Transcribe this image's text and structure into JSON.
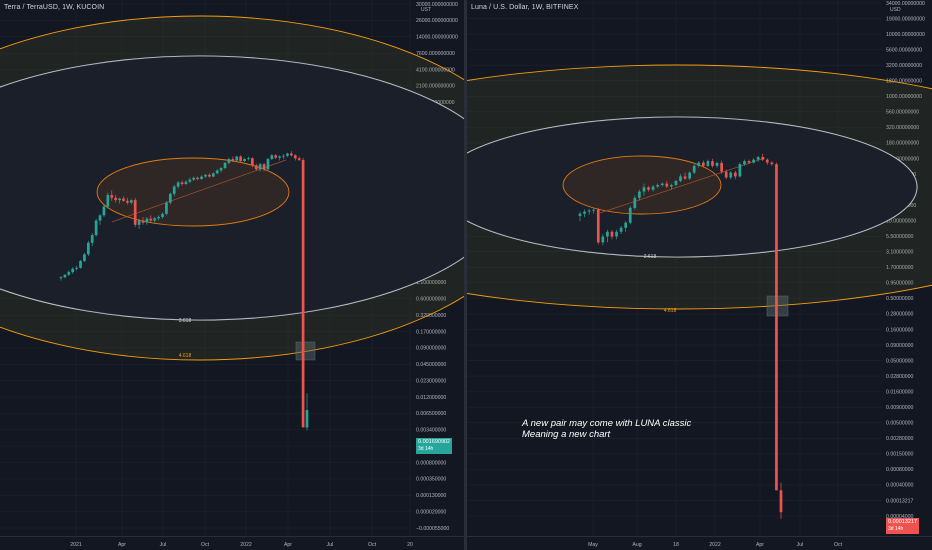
{
  "chart_data": [
    {
      "type": "candlestick",
      "title": "Terra / TerraUSD, 1W, KUCOIN",
      "unit": "UST",
      "scale": "log",
      "y_ticks": [
        "30000.000000000",
        "26000.000000000",
        "14000.000000000",
        "7600.000000000",
        "4100.000000000",
        "2100.000000000",
        "1100.000000000",
        "580.000000000",
        "320.000000000",
        "170.000000000",
        "90.000000000",
        "46.000000000",
        "24.000000000",
        "13.000000000",
        "7.000000000",
        "3.800000000",
        "2.000000000",
        "1.100000000",
        "0.600000000",
        "0.320000000",
        "0.170000000",
        "0.090000000",
        "0.045000000",
        "0.023000000",
        "0.012000000",
        "0.006500000",
        "0.003400000",
        "0.001690902",
        "0.000800000",
        "0.000350000",
        "0.000130000",
        "0.000020000",
        "−0.000055000"
      ],
      "x_ticks": [
        "2021",
        "Apr",
        "Jul",
        "Oct",
        "2022",
        "Apr",
        "Jul",
        "Oct",
        "20"
      ],
      "fib_labels": [
        "3.618",
        "4.618"
      ],
      "last_price": "0.001690902",
      "last_price_sub": "3d 14h",
      "candles": [
        {
          "o": 0.5,
          "h": 0.55,
          "l": 0.45,
          "c": 0.52
        },
        {
          "o": 0.52,
          "h": 0.6,
          "l": 0.5,
          "c": 0.58
        },
        {
          "o": 0.58,
          "h": 0.7,
          "l": 0.55,
          "c": 0.65
        },
        {
          "o": 0.65,
          "h": 0.8,
          "l": 0.6,
          "c": 0.75
        },
        {
          "o": 0.75,
          "h": 0.85,
          "l": 0.7,
          "c": 0.78
        },
        {
          "o": 0.78,
          "h": 1.1,
          "l": 0.75,
          "c": 1.05
        },
        {
          "o": 1.05,
          "h": 1.5,
          "l": 1.0,
          "c": 1.4
        },
        {
          "o": 1.4,
          "h": 2.5,
          "l": 1.3,
          "c": 2.3
        },
        {
          "o": 2.3,
          "h": 3.5,
          "l": 2.0,
          "c": 3.2
        },
        {
          "o": 3.2,
          "h": 6.5,
          "l": 3.0,
          "c": 6.0
        },
        {
          "o": 6.0,
          "h": 8.0,
          "l": 5.0,
          "c": 7.5
        },
        {
          "o": 7.5,
          "h": 12.0,
          "l": 7.0,
          "c": 11.0
        },
        {
          "o": 11.0,
          "h": 20.0,
          "l": 10.0,
          "c": 18.0
        },
        {
          "o": 18.0,
          "h": 22.0,
          "l": 14.0,
          "c": 16.0
        },
        {
          "o": 16.0,
          "h": 18.0,
          "l": 13.0,
          "c": 14.5
        },
        {
          "o": 14.5,
          "h": 16.0,
          "l": 12.5,
          "c": 15.5
        },
        {
          "o": 15.5,
          "h": 17.0,
          "l": 13.5,
          "c": 14.0
        },
        {
          "o": 14.0,
          "h": 16.0,
          "l": 12.0,
          "c": 13.0
        },
        {
          "o": 13.0,
          "h": 15.0,
          "l": 12.0,
          "c": 14.5
        },
        {
          "o": 14.5,
          "h": 16.0,
          "l": 4.5,
          "c": 5.0
        },
        {
          "o": 5.0,
          "h": 6.5,
          "l": 4.2,
          "c": 6.0
        },
        {
          "o": 6.0,
          "h": 7.0,
          "l": 5.0,
          "c": 5.5
        },
        {
          "o": 5.5,
          "h": 7.0,
          "l": 5.0,
          "c": 6.5
        },
        {
          "o": 6.5,
          "h": 7.5,
          "l": 5.5,
          "c": 6.0
        },
        {
          "o": 6.0,
          "h": 7.0,
          "l": 5.5,
          "c": 6.6
        },
        {
          "o": 6.6,
          "h": 7.5,
          "l": 6.0,
          "c": 7.0
        },
        {
          "o": 7.0,
          "h": 8.5,
          "l": 6.5,
          "c": 8.0
        },
        {
          "o": 8.0,
          "h": 14.0,
          "l": 7.5,
          "c": 13.0
        },
        {
          "o": 13.0,
          "h": 20.0,
          "l": 12.0,
          "c": 19.0
        },
        {
          "o": 19.0,
          "h": 28.0,
          "l": 17.0,
          "c": 26.0
        },
        {
          "o": 26.0,
          "h": 33.0,
          "l": 24.0,
          "c": 31.0
        },
        {
          "o": 31.0,
          "h": 34.0,
          "l": 27.0,
          "c": 29.0
        },
        {
          "o": 29.0,
          "h": 34.0,
          "l": 28.0,
          "c": 32.0
        },
        {
          "o": 32.0,
          "h": 38.0,
          "l": 30.0,
          "c": 35.0
        },
        {
          "o": 35.0,
          "h": 40.0,
          "l": 33.0,
          "c": 38.0
        },
        {
          "o": 38.0,
          "h": 40.0,
          "l": 34.0,
          "c": 36.0
        },
        {
          "o": 36.0,
          "h": 42.0,
          "l": 35.0,
          "c": 40.0
        },
        {
          "o": 40.0,
          "h": 45.0,
          "l": 38.0,
          "c": 43.0
        },
        {
          "o": 43.0,
          "h": 46.0,
          "l": 38.0,
          "c": 40.0
        },
        {
          "o": 40.0,
          "h": 48.0,
          "l": 39.0,
          "c": 46.0
        },
        {
          "o": 46.0,
          "h": 55.0,
          "l": 44.0,
          "c": 52.0
        },
        {
          "o": 52.0,
          "h": 60.0,
          "l": 48.0,
          "c": 58.0
        },
        {
          "o": 58.0,
          "h": 75.0,
          "l": 55.0,
          "c": 72.0
        },
        {
          "o": 72.0,
          "h": 90.0,
          "l": 68.0,
          "c": 85.0
        },
        {
          "o": 85.0,
          "h": 95.0,
          "l": 75.0,
          "c": 80.0
        },
        {
          "o": 80.0,
          "h": 98.0,
          "l": 78.0,
          "c": 95.0
        },
        {
          "o": 95.0,
          "h": 100.0,
          "l": 72.0,
          "c": 78.0
        },
        {
          "o": 78.0,
          "h": 90.0,
          "l": 75.0,
          "c": 85.0
        },
        {
          "o": 85.0,
          "h": 95.0,
          "l": 80.0,
          "c": 88.0
        },
        {
          "o": 88.0,
          "h": 92.0,
          "l": 60.0,
          "c": 65.0
        },
        {
          "o": 65.0,
          "h": 70.0,
          "l": 52.0,
          "c": 55.0
        },
        {
          "o": 55.0,
          "h": 72.0,
          "l": 50.0,
          "c": 68.0
        },
        {
          "o": 68.0,
          "h": 72.0,
          "l": 50.0,
          "c": 55.0
        },
        {
          "o": 55.0,
          "h": 90.0,
          "l": 53.0,
          "c": 85.0
        },
        {
          "o": 85.0,
          "h": 105.0,
          "l": 82.0,
          "c": 100.0
        },
        {
          "o": 100.0,
          "h": 105.0,
          "l": 85.0,
          "c": 90.0
        },
        {
          "o": 90.0,
          "h": 100.0,
          "l": 80.0,
          "c": 95.0
        },
        {
          "o": 95.0,
          "h": 105.0,
          "l": 85.0,
          "c": 98.0
        },
        {
          "o": 98.0,
          "h": 112.0,
          "l": 92.0,
          "c": 108.0
        },
        {
          "o": 108.0,
          "h": 119.0,
          "l": 95.0,
          "c": 100.0
        },
        {
          "o": 100.0,
          "h": 105.0,
          "l": 80.0,
          "c": 88.0
        },
        {
          "o": 88.0,
          "h": 95.0,
          "l": 78.0,
          "c": 82.0
        },
        {
          "o": 82.0,
          "h": 90.0,
          "l": 0.0008,
          "c": 0.0008
        },
        {
          "o": 0.0008,
          "h": 0.0035,
          "l": 0.0007,
          "c": 0.0017
        }
      ]
    },
    {
      "type": "candlestick",
      "title": "Luna / U.S. Dollar, 1W, BITFINEX",
      "unit": "USD",
      "scale": "log",
      "y_ticks": [
        "34000.00000000",
        "19000.00000000",
        "10000.00000000",
        "5600.00000000",
        "3200.00000000",
        "1800.00000000",
        "1000.00000000",
        "560.00000000",
        "320.00000000",
        "180.00000000",
        "100.00000000",
        "56.00000000",
        "32.00000000",
        "18.00000000",
        "10.00000000",
        "5.50000000",
        "3.10000000",
        "1.70000000",
        "0.95000000",
        "0.50000000",
        "0.28000000",
        "0.16000000",
        "0.09000000",
        "0.05000000",
        "0.02800000",
        "0.01600000",
        "0.00900000",
        "0.00500000",
        "0.00280000",
        "0.00150000",
        "0.00080000",
        "0.00040000",
        "0.00013217",
        "0.00004000"
      ],
      "x_ticks": [
        "May",
        "Aug",
        "18",
        "2022",
        "Apr",
        "Jul",
        "Oct"
      ],
      "fib_labels": [
        "2.618",
        "4.618"
      ],
      "last_price": "0.00013217",
      "last_price_sub": "3d 14h",
      "annotation": [
        "A new pair may come with LUNA classic",
        "Meaning a new chart"
      ],
      "candles": [
        {
          "o": 11.0,
          "h": 13.0,
          "l": 9.0,
          "c": 12.0
        },
        {
          "o": 12.0,
          "h": 14.0,
          "l": 10.5,
          "c": 13.0
        },
        {
          "o": 13.0,
          "h": 14.5,
          "l": 11.5,
          "c": 13.5
        },
        {
          "o": 13.5,
          "h": 15.0,
          "l": 12.0,
          "c": 14.0
        },
        {
          "o": 14.0,
          "h": 15.0,
          "l": 3.7,
          "c": 4.0
        },
        {
          "o": 4.0,
          "h": 5.5,
          "l": 3.6,
          "c": 5.0
        },
        {
          "o": 5.0,
          "h": 6.5,
          "l": 4.0,
          "c": 6.0
        },
        {
          "o": 6.0,
          "h": 6.5,
          "l": 4.5,
          "c": 5.0
        },
        {
          "o": 5.0,
          "h": 6.5,
          "l": 4.5,
          "c": 6.0
        },
        {
          "o": 6.0,
          "h": 7.5,
          "l": 5.5,
          "c": 7.0
        },
        {
          "o": 7.0,
          "h": 9.0,
          "l": 6.0,
          "c": 8.5
        },
        {
          "o": 8.5,
          "h": 16.0,
          "l": 8.0,
          "c": 15.0
        },
        {
          "o": 15.0,
          "h": 24.0,
          "l": 14.0,
          "c": 22.0
        },
        {
          "o": 22.0,
          "h": 30.0,
          "l": 20.0,
          "c": 28.0
        },
        {
          "o": 28.0,
          "h": 38.0,
          "l": 24.0,
          "c": 33.0
        },
        {
          "o": 33.0,
          "h": 35.0,
          "l": 28.0,
          "c": 30.0
        },
        {
          "o": 30.0,
          "h": 36.0,
          "l": 28.0,
          "c": 34.0
        },
        {
          "o": 34.0,
          "h": 38.0,
          "l": 32.0,
          "c": 36.0
        },
        {
          "o": 36.0,
          "h": 40.0,
          "l": 34.0,
          "c": 38.0
        },
        {
          "o": 38.0,
          "h": 42.0,
          "l": 32.0,
          "c": 34.0
        },
        {
          "o": 34.0,
          "h": 38.0,
          "l": 30.0,
          "c": 36.0
        },
        {
          "o": 36.0,
          "h": 44.0,
          "l": 34.0,
          "c": 42.0
        },
        {
          "o": 42.0,
          "h": 55.0,
          "l": 40.0,
          "c": 50.0
        },
        {
          "o": 50.0,
          "h": 58.0,
          "l": 44.0,
          "c": 46.0
        },
        {
          "o": 46.0,
          "h": 60.0,
          "l": 44.0,
          "c": 58.0
        },
        {
          "o": 58.0,
          "h": 80.0,
          "l": 55.0,
          "c": 75.0
        },
        {
          "o": 75.0,
          "h": 90.0,
          "l": 70.0,
          "c": 85.0
        },
        {
          "o": 85.0,
          "h": 92.0,
          "l": 70.0,
          "c": 75.0
        },
        {
          "o": 75.0,
          "h": 95.0,
          "l": 72.0,
          "c": 90.0
        },
        {
          "o": 90.0,
          "h": 98.0,
          "l": 70.0,
          "c": 75.0
        },
        {
          "o": 75.0,
          "h": 88.0,
          "l": 70.0,
          "c": 84.0
        },
        {
          "o": 84.0,
          "h": 92.0,
          "l": 55.0,
          "c": 60.0
        },
        {
          "o": 60.0,
          "h": 65.0,
          "l": 45.0,
          "c": 48.0
        },
        {
          "o": 48.0,
          "h": 62.0,
          "l": 45.0,
          "c": 58.0
        },
        {
          "o": 58.0,
          "h": 62.0,
          "l": 45.0,
          "c": 50.0
        },
        {
          "o": 50.0,
          "h": 85.0,
          "l": 48.0,
          "c": 80.0
        },
        {
          "o": 80.0,
          "h": 95.0,
          "l": 75.0,
          "c": 90.0
        },
        {
          "o": 90.0,
          "h": 95.0,
          "l": 80.0,
          "c": 85.0
        },
        {
          "o": 85.0,
          "h": 100.0,
          "l": 82.0,
          "c": 95.0
        },
        {
          "o": 95.0,
          "h": 110.0,
          "l": 88.0,
          "c": 105.0
        },
        {
          "o": 105.0,
          "h": 119.0,
          "l": 90.0,
          "c": 95.0
        },
        {
          "o": 95.0,
          "h": 100.0,
          "l": 78.0,
          "c": 85.0
        },
        {
          "o": 85.0,
          "h": 90.0,
          "l": 75.0,
          "c": 80.0
        },
        {
          "o": 80.0,
          "h": 85.0,
          "l": 0.0003,
          "c": 0.0003
        },
        {
          "o": 0.0003,
          "h": 0.0004,
          "l": 0.0001,
          "c": 0.00013
        }
      ]
    }
  ],
  "colors": {
    "background": "#131722",
    "up": "#26a69a",
    "down": "#ef5350",
    "fib_white": "#d1d4dc",
    "fib_orange": "#f59d0d",
    "orange_ellipse": "#e47a12",
    "grid": "#1f2330",
    "axis_text": "#b2b5be",
    "badge_green": "#26a69a",
    "badge_red": "#ef5350"
  }
}
